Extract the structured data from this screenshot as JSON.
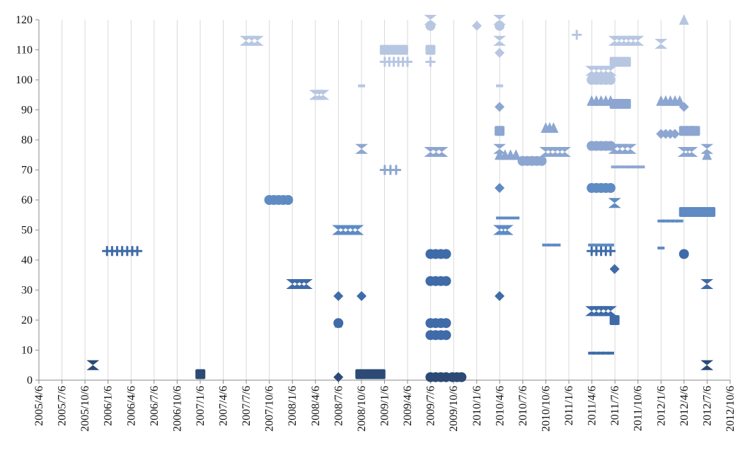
{
  "chart_data": {
    "type": "scatter",
    "title": "",
    "xlabel": "",
    "ylabel": "",
    "ylim": [
      0,
      120
    ],
    "yticks": [
      0,
      10,
      20,
      30,
      40,
      50,
      60,
      70,
      80,
      90,
      100,
      110,
      120
    ],
    "xlim": [
      "2005-04-06",
      "2012-10-06"
    ],
    "xtick_labels": [
      "2005/4/6",
      "2005/7/6",
      "2005/10/6",
      "2006/1/6",
      "2006/4/6",
      "2006/7/6",
      "2006/10/6",
      "2007/1/6",
      "2007/4/6",
      "2007/7/6",
      "2007/10/6",
      "2008/1/6",
      "2008/4/6",
      "2008/7/6",
      "2008/10/6",
      "2009/1/6",
      "2009/4/6",
      "2009/7/6",
      "2009/10/6",
      "2010/1/6",
      "2010/4/6",
      "2010/7/6",
      "2010/10/6",
      "2011/1/6",
      "2011/4/6",
      "2011/7/6",
      "2011/10/6",
      "2012/1/6",
      "2012/4/6",
      "2012/7/6",
      "2012/10/6"
    ],
    "grid": "vertical",
    "legend": "none",
    "series_colors": [
      "#2c4a75",
      "#3f6ba8",
      "#5f8bc4",
      "#8ca6d1",
      "#b7c6e1"
    ],
    "points": [
      {
        "series": 0,
        "shape": "x",
        "x": "2005-11-06",
        "x2": "2005-11-06",
        "y": 5
      },
      {
        "series": 0,
        "shape": "square",
        "x": "2007-01-06",
        "x2": "2007-01-06",
        "y": 2
      },
      {
        "series": 0,
        "shape": "diamond",
        "x": "2008-07-06",
        "x2": "2008-07-06",
        "y": 1
      },
      {
        "series": 0,
        "shape": "square",
        "x": "2008-10-01",
        "x2": "2008-12-20",
        "y": 2
      },
      {
        "series": 0,
        "shape": "circle",
        "x": "2009-07-06",
        "x2": "2009-09-06",
        "y": 1
      },
      {
        "series": 0,
        "shape": "circle",
        "x": "2009-10-01",
        "x2": "2009-11-06",
        "y": 1
      },
      {
        "series": 0,
        "shape": "x",
        "x": "2012-07-06",
        "x2": "2012-07-06",
        "y": 5
      },
      {
        "series": 1,
        "shape": "plus",
        "x": "2006-01-01",
        "x2": "2006-05-01",
        "y": 43
      },
      {
        "series": 1,
        "shape": "x",
        "x": "2008-01-06",
        "x2": "2008-03-01",
        "y": 32
      },
      {
        "series": 1,
        "shape": "diamond",
        "x": "2008-07-06",
        "x2": "2008-07-06",
        "y": 28
      },
      {
        "series": 1,
        "shape": "diamond",
        "x": "2008-10-06",
        "x2": "2008-10-06",
        "y": 28
      },
      {
        "series": 1,
        "shape": "circle",
        "x": "2008-07-06",
        "x2": "2008-07-06",
        "y": 19
      },
      {
        "series": 1,
        "shape": "dash",
        "x": "2008-07-06",
        "x2": "2008-07-06",
        "y": 18
      },
      {
        "series": 1,
        "shape": "circle",
        "x": "2009-07-06",
        "x2": "2009-09-06",
        "y": 19
      },
      {
        "series": 1,
        "shape": "circle",
        "x": "2009-07-06",
        "x2": "2009-09-06",
        "y": 15
      },
      {
        "series": 1,
        "shape": "circle",
        "x": "2009-07-06",
        "x2": "2009-09-06",
        "y": 33
      },
      {
        "series": 1,
        "shape": "circle",
        "x": "2009-07-06",
        "x2": "2009-09-06",
        "y": 42
      },
      {
        "series": 1,
        "shape": "diamond",
        "x": "2010-04-06",
        "x2": "2010-04-06",
        "y": 28
      },
      {
        "series": 1,
        "shape": "dash",
        "x": "2011-04-06",
        "x2": "2011-06-20",
        "y": 9
      },
      {
        "series": 1,
        "shape": "x",
        "x": "2011-04-06",
        "x2": "2011-06-20",
        "y": 23
      },
      {
        "series": 1,
        "shape": "square",
        "x": "2011-07-06",
        "x2": "2011-07-06",
        "y": 20
      },
      {
        "series": 1,
        "shape": "diamond",
        "x": "2011-07-06",
        "x2": "2011-07-06",
        "y": 37
      },
      {
        "series": 1,
        "shape": "plus",
        "x": "2011-04-06",
        "x2": "2011-06-20",
        "y": 43
      },
      {
        "series": 1,
        "shape": "x",
        "x": "2012-07-06",
        "x2": "2012-07-06",
        "y": 32
      },
      {
        "series": 1,
        "shape": "circle",
        "x": "2012-04-06",
        "x2": "2012-04-06",
        "y": 42
      },
      {
        "series": 2,
        "shape": "circle",
        "x": "2007-10-06",
        "x2": "2007-12-20",
        "y": 60
      },
      {
        "series": 2,
        "shape": "x",
        "x": "2008-07-06",
        "x2": "2008-09-20",
        "y": 50
      },
      {
        "series": 2,
        "shape": "dash",
        "x": "2010-04-06",
        "x2": "2010-06-10",
        "y": 54
      },
      {
        "series": 2,
        "shape": "x",
        "x": "2010-04-06",
        "x2": "2010-05-06",
        "y": 50
      },
      {
        "series": 2,
        "shape": "diamond",
        "x": "2010-04-06",
        "x2": "2010-04-06",
        "y": 64
      },
      {
        "series": 2,
        "shape": "dash",
        "x": "2010-10-06",
        "x2": "2010-11-20",
        "y": 45
      },
      {
        "series": 2,
        "shape": "dash",
        "x": "2011-04-06",
        "x2": "2011-06-20",
        "y": 45
      },
      {
        "series": 2,
        "shape": "circle",
        "x": "2011-04-06",
        "x2": "2011-06-20",
        "y": 64
      },
      {
        "series": 2,
        "shape": "x",
        "x": "2011-07-06",
        "x2": "2011-07-06",
        "y": 59
      },
      {
        "series": 2,
        "shape": "dash",
        "x": "2012-01-06",
        "x2": "2012-03-20",
        "y": 53
      },
      {
        "series": 2,
        "shape": "dash",
        "x": "2012-01-06",
        "x2": "2012-01-06",
        "y": 44
      },
      {
        "series": 2,
        "shape": "square",
        "x": "2012-04-06",
        "x2": "2012-07-20",
        "y": 56
      },
      {
        "series": 3,
        "shape": "x",
        "x": "2008-10-06",
        "x2": "2008-10-06",
        "y": 77
      },
      {
        "series": 3,
        "shape": "plus",
        "x": "2009-01-06",
        "x2": "2009-02-20",
        "y": 70
      },
      {
        "series": 3,
        "shape": "x",
        "x": "2009-07-06",
        "x2": "2009-08-20",
        "y": 76
      },
      {
        "series": 3,
        "shape": "square",
        "x": "2010-04-06",
        "x2": "2010-04-06",
        "y": 83
      },
      {
        "series": 3,
        "shape": "diamond",
        "x": "2010-04-06",
        "x2": "2010-04-06",
        "y": 91
      },
      {
        "series": 3,
        "shape": "triangle",
        "x": "2010-04-06",
        "x2": "2010-06-10",
        "y": 75
      },
      {
        "series": 3,
        "shape": "x",
        "x": "2010-04-06",
        "x2": "2010-04-06",
        "y": 77
      },
      {
        "series": 3,
        "shape": "circle",
        "x": "2010-07-06",
        "x2": "2010-09-20",
        "y": 73
      },
      {
        "series": 3,
        "shape": "triangle",
        "x": "2010-10-06",
        "x2": "2010-11-06",
        "y": 84
      },
      {
        "series": 3,
        "shape": "x",
        "x": "2010-10-06",
        "x2": "2010-12-20",
        "y": 76
      },
      {
        "series": 3,
        "shape": "circle",
        "x": "2011-04-06",
        "x2": "2011-06-20",
        "y": 78
      },
      {
        "series": 3,
        "shape": "triangle",
        "x": "2011-04-06",
        "x2": "2011-06-20",
        "y": 93
      },
      {
        "series": 3,
        "shape": "x",
        "x": "2011-07-06",
        "x2": "2011-09-06",
        "y": 77
      },
      {
        "series": 3,
        "shape": "square",
        "x": "2011-07-06",
        "x2": "2011-08-20",
        "y": 92
      },
      {
        "series": 3,
        "shape": "dash",
        "x": "2011-07-06",
        "x2": "2011-10-20",
        "y": 71
      },
      {
        "series": 3,
        "shape": "diamond",
        "x": "2012-01-06",
        "x2": "2012-03-01",
        "y": 82
      },
      {
        "series": 3,
        "shape": "triangle",
        "x": "2012-01-06",
        "x2": "2012-03-20",
        "y": 93
      },
      {
        "series": 3,
        "shape": "square",
        "x": "2012-04-06",
        "x2": "2012-05-20",
        "y": 83
      },
      {
        "series": 3,
        "shape": "x",
        "x": "2012-04-06",
        "x2": "2012-05-06",
        "y": 76
      },
      {
        "series": 3,
        "shape": "diamond",
        "x": "2012-04-06",
        "x2": "2012-04-06",
        "y": 91
      },
      {
        "series": 3,
        "shape": "triangle",
        "x": "2012-07-06",
        "x2": "2012-07-06",
        "y": 75
      },
      {
        "series": 3,
        "shape": "x",
        "x": "2012-07-06",
        "x2": "2012-07-06",
        "y": 77
      },
      {
        "series": 4,
        "shape": "x",
        "x": "2007-07-06",
        "x2": "2007-08-20",
        "y": 113
      },
      {
        "series": 4,
        "shape": "x",
        "x": "2008-04-06",
        "x2": "2008-05-06",
        "y": 95
      },
      {
        "series": 4,
        "shape": "dash",
        "x": "2008-10-06",
        "x2": "2008-10-06",
        "y": 98
      },
      {
        "series": 4,
        "shape": "square",
        "x": "2009-01-06",
        "x2": "2009-03-20",
        "y": 110
      },
      {
        "series": 4,
        "shape": "plus",
        "x": "2009-01-06",
        "x2": "2009-04-06",
        "y": 106
      },
      {
        "series": 4,
        "shape": "circle",
        "x": "2009-07-06",
        "x2": "2009-07-06",
        "y": 118
      },
      {
        "series": 4,
        "shape": "square",
        "x": "2009-07-06",
        "x2": "2009-07-06",
        "y": 110
      },
      {
        "series": 4,
        "shape": "plus",
        "x": "2009-07-06",
        "x2": "2009-07-06",
        "y": 106
      },
      {
        "series": 4,
        "shape": "x",
        "x": "2009-07-06",
        "x2": "2009-07-06",
        "y": 120
      },
      {
        "series": 4,
        "shape": "diamond",
        "x": "2010-01-06",
        "x2": "2010-01-06",
        "y": 118
      },
      {
        "series": 4,
        "shape": "circle",
        "x": "2010-04-06",
        "x2": "2010-04-06",
        "y": 118
      },
      {
        "series": 4,
        "shape": "x",
        "x": "2010-04-06",
        "x2": "2010-04-06",
        "y": 120
      },
      {
        "series": 4,
        "shape": "x",
        "x": "2010-04-06",
        "x2": "2010-04-06",
        "y": 113
      },
      {
        "series": 4,
        "shape": "diamond",
        "x": "2010-04-06",
        "x2": "2010-04-06",
        "y": 109
      },
      {
        "series": 4,
        "shape": "dash",
        "x": "2010-04-06",
        "x2": "2010-04-06",
        "y": 98
      },
      {
        "series": 4,
        "shape": "plus",
        "x": "2011-02-06",
        "x2": "2011-02-06",
        "y": 115
      },
      {
        "series": 4,
        "shape": "x",
        "x": "2011-04-06",
        "x2": "2011-06-20",
        "y": 103
      },
      {
        "series": 4,
        "shape": "circle",
        "x": "2011-04-06",
        "x2": "2011-06-20",
        "y": 100
      },
      {
        "series": 4,
        "shape": "x",
        "x": "2011-07-06",
        "x2": "2011-10-06",
        "y": 113
      },
      {
        "series": 4,
        "shape": "square",
        "x": "2011-07-06",
        "x2": "2011-08-20",
        "y": 106
      },
      {
        "series": 4,
        "shape": "x",
        "x": "2012-01-06",
        "x2": "2012-01-06",
        "y": 112
      },
      {
        "series": 4,
        "shape": "triangle",
        "x": "2012-04-06",
        "x2": "2012-04-06",
        "y": 120
      }
    ]
  }
}
